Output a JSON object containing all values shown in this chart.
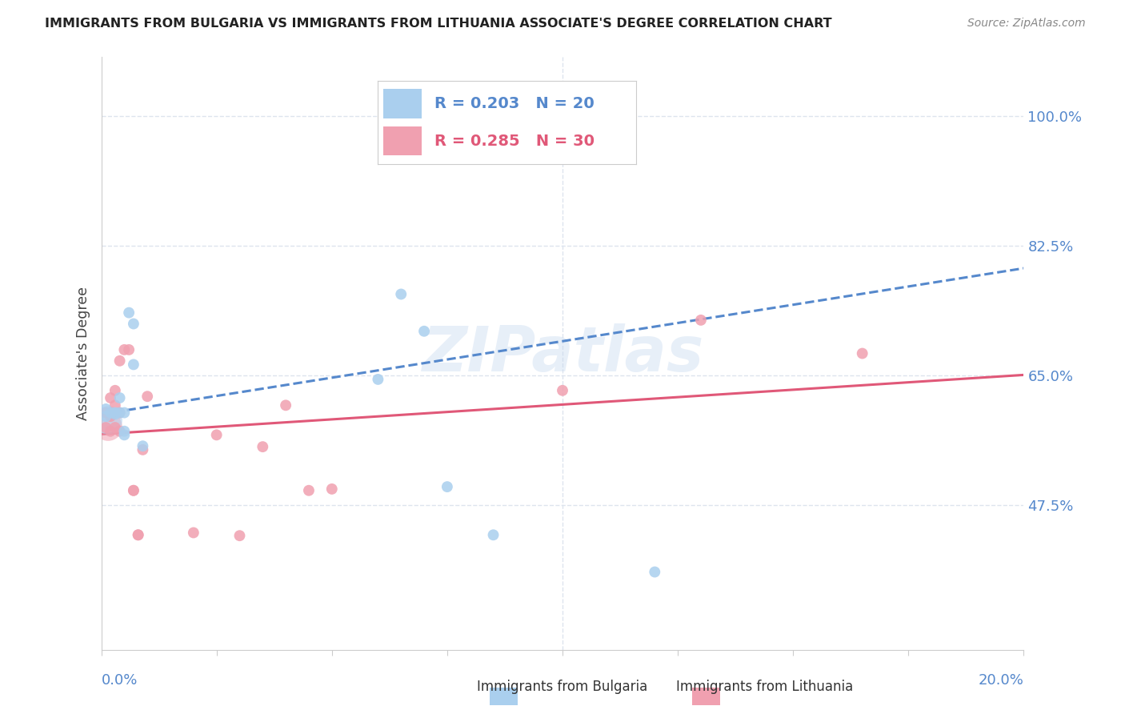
{
  "title": "IMMIGRANTS FROM BULGARIA VS IMMIGRANTS FROM LITHUANIA ASSOCIATE'S DEGREE CORRELATION CHART",
  "source": "Source: ZipAtlas.com",
  "ylabel": "Associate's Degree",
  "y_ticks": [
    0.475,
    0.65,
    0.825,
    1.0
  ],
  "y_tick_labels": [
    "47.5%",
    "65.0%",
    "82.5%",
    "100.0%"
  ],
  "xlim": [
    0.0,
    0.2
  ],
  "ylim": [
    0.28,
    1.08
  ],
  "bulgaria_R": 0.203,
  "bulgaria_N": 20,
  "lithuania_R": 0.285,
  "lithuania_N": 30,
  "bulgaria_color": "#aacfee",
  "lithuania_color": "#f0a0b0",
  "trendline_bulgaria_color": "#5588cc",
  "trendline_lithuania_color": "#e05878",
  "watermark": "ZIPatlas",
  "bg_color": "#ffffff",
  "grid_color": "#dde4ee",
  "axis_color": "#5588cc",
  "bulgaria_points_x": [
    0.001,
    0.001,
    0.002,
    0.003,
    0.003,
    0.004,
    0.004,
    0.005,
    0.005,
    0.005,
    0.006,
    0.007,
    0.007,
    0.009,
    0.06,
    0.065,
    0.07,
    0.075,
    0.085,
    0.12
  ],
  "bulgaria_points_y": [
    0.595,
    0.605,
    0.6,
    0.598,
    0.6,
    0.6,
    0.62,
    0.575,
    0.57,
    0.6,
    0.735,
    0.72,
    0.665,
    0.555,
    0.645,
    0.76,
    0.71,
    0.5,
    0.435,
    0.385
  ],
  "lithuania_points_x": [
    0.001,
    0.001,
    0.002,
    0.002,
    0.002,
    0.002,
    0.003,
    0.003,
    0.003,
    0.004,
    0.004,
    0.004,
    0.005,
    0.006,
    0.007,
    0.007,
    0.008,
    0.008,
    0.009,
    0.01,
    0.02,
    0.025,
    0.03,
    0.035,
    0.04,
    0.045,
    0.05,
    0.1,
    0.13,
    0.165
  ],
  "lithuania_points_y": [
    0.58,
    0.6,
    0.595,
    0.62,
    0.575,
    0.6,
    0.61,
    0.58,
    0.63,
    0.67,
    0.575,
    0.6,
    0.685,
    0.685,
    0.495,
    0.495,
    0.435,
    0.435,
    0.55,
    0.622,
    0.438,
    0.57,
    0.434,
    0.554,
    0.61,
    0.495,
    0.497,
    0.63,
    0.725,
    0.68
  ],
  "bg_trendline_x0": 0.0,
  "bg_trendline_y0": 0.598,
  "bg_trendline_x1": 0.2,
  "bg_trendline_y1": 0.795,
  "lt_trendline_x0": 0.0,
  "lt_trendline_y0": 0.571,
  "lt_trendline_x1": 0.2,
  "lt_trendline_y1": 0.651
}
